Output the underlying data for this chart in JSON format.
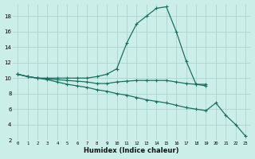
{
  "xlabel": "Humidex (Indice chaleur)",
  "bg_color": "#cceee8",
  "grid_color": "#aad4cc",
  "line_color": "#1a7060",
  "xlim": [
    -0.5,
    23.5
  ],
  "ylim": [
    2,
    19.5
  ],
  "xticks": [
    0,
    1,
    2,
    3,
    4,
    5,
    6,
    7,
    8,
    9,
    10,
    11,
    12,
    13,
    14,
    15,
    16,
    17,
    18,
    19,
    20,
    21,
    22,
    23
  ],
  "yticks": [
    2,
    4,
    6,
    8,
    10,
    12,
    14,
    16,
    18
  ],
  "series": [
    {
      "x": [
        0,
        1,
        2,
        3,
        4,
        5,
        6,
        7,
        8,
        9,
        10,
        11,
        12,
        13,
        14,
        15,
        16,
        17,
        18,
        19,
        20,
        21,
        22,
        23
      ],
      "y": [
        10.5,
        10.2,
        10.0,
        10.0,
        10.0,
        10.0,
        10.0,
        10.0,
        10.2,
        10.5,
        11.2,
        14.5,
        17.0,
        18.0,
        19.0,
        19.2,
        16.0,
        12.2,
        9.2,
        9.2,
        null,
        null,
        null,
        null
      ]
    },
    {
      "x": [
        0,
        1,
        2,
        3,
        4,
        5,
        6,
        7,
        8,
        9,
        10,
        11,
        12,
        13,
        14,
        15,
        16,
        17,
        18,
        19,
        20,
        21,
        22,
        23
      ],
      "y": [
        10.5,
        10.2,
        10.0,
        9.9,
        9.8,
        9.7,
        9.6,
        9.5,
        9.3,
        9.3,
        9.5,
        9.6,
        9.7,
        9.7,
        9.7,
        9.7,
        9.5,
        9.3,
        9.2,
        9.0,
        null,
        null,
        null,
        null
      ]
    },
    {
      "x": [
        0,
        1,
        2,
        3,
        4,
        5,
        6,
        7,
        8,
        9,
        10,
        11,
        12,
        13,
        14,
        15,
        16,
        17,
        18,
        19,
        20,
        21,
        22,
        23
      ],
      "y": [
        10.5,
        10.2,
        10.0,
        9.8,
        9.5,
        9.2,
        9.0,
        8.8,
        8.5,
        8.3,
        8.0,
        7.8,
        7.5,
        7.2,
        7.0,
        6.8,
        6.5,
        6.2,
        6.0,
        5.8,
        6.8,
        5.2,
        4.0,
        2.5
      ]
    }
  ]
}
